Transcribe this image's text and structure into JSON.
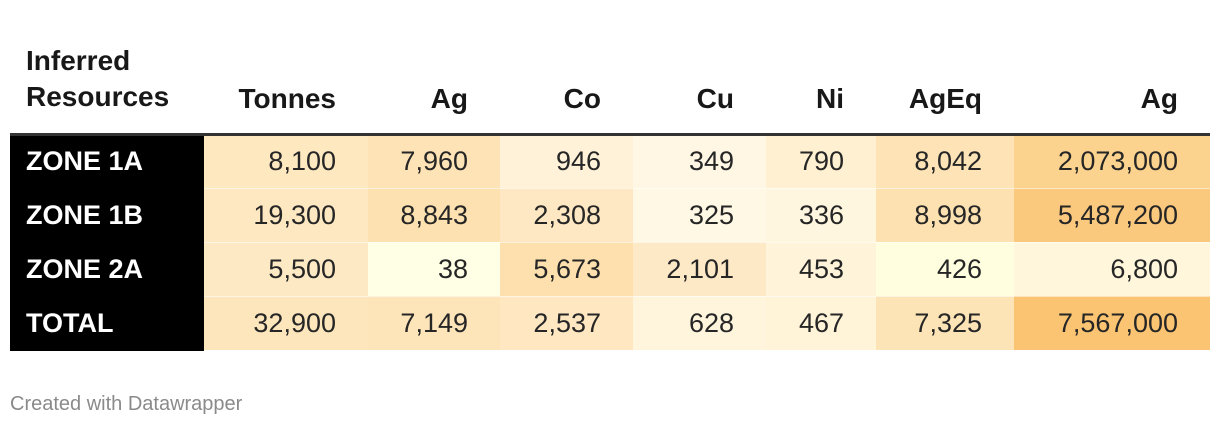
{
  "chart_data": {
    "type": "table",
    "columns": [
      "Inferred Resources",
      "Tonnes",
      "Ag",
      "Co",
      "Cu",
      "Ni",
      "AgEq",
      "Ag"
    ],
    "rows": [
      {
        "label": "ZONE 1A",
        "values": [
          "8,100",
          "7,960",
          "946",
          "349",
          "790",
          "8,042",
          "2,073,000"
        ],
        "colors": [
          "#fde8c0",
          "#fde3b5",
          "#fff2d8",
          "#fff7e4",
          "#fff0d2",
          "#fde3b5",
          "#fbd28e"
        ]
      },
      {
        "label": "ZONE 1B",
        "values": [
          "19,300",
          "8,843",
          "2,308",
          "325",
          "336",
          "8,998",
          "5,487,200"
        ],
        "colors": [
          "#fde8c1",
          "#fde1b0",
          "#fee8c3",
          "#fff8e4",
          "#fff6e0",
          "#fde1b0",
          "#fbc97e"
        ]
      },
      {
        "label": "ZONE 2A",
        "values": [
          "5,500",
          "38",
          "5,673",
          "2,101",
          "453",
          "426",
          "6,800"
        ],
        "colors": [
          "#fde9c4",
          "#ffffe5",
          "#fde0ad",
          "#fee9c6",
          "#fff3d9",
          "#ffffe0",
          "#fff6dc"
        ]
      },
      {
        "label": "TOTAL",
        "values": [
          "32,900",
          "7,149",
          "2,537",
          "628",
          "467",
          "7,325",
          "7,567,000"
        ],
        "colors": [
          "#fde6bc",
          "#fde5b9",
          "#fee7c1",
          "#fff5dd",
          "#fff3d8",
          "#fde4b7",
          "#fbc472"
        ]
      }
    ]
  },
  "footer": {
    "credit": "Created with Datawrapper"
  }
}
